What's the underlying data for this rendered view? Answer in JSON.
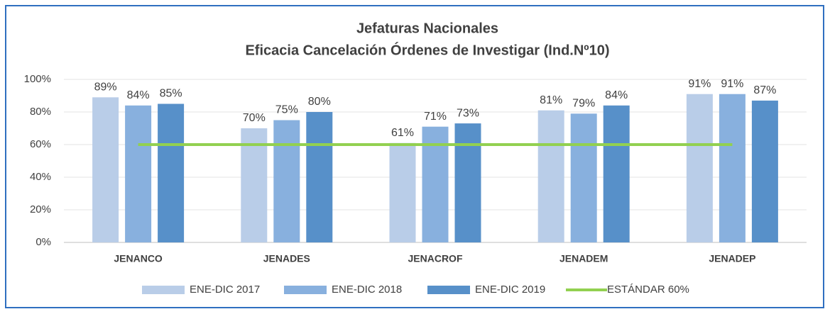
{
  "chart_data": {
    "type": "bar",
    "title": "Jefaturas Nacionales",
    "subtitle": "Eficacia Cancelación Órdenes de Investigar (Ind.Nº10)",
    "categories": [
      "JENANCO",
      "JENADES",
      "JENACROF",
      "JENADEM",
      "JENADEP"
    ],
    "series": [
      {
        "name": "ENE-DIC 2017",
        "color": "#b9cde8",
        "values": [
          89,
          70,
          61,
          81,
          91
        ],
        "value_labels": [
          "89%",
          "70%",
          "61%",
          "81%",
          "91%"
        ]
      },
      {
        "name": "ENE-DIC 2018",
        "color": "#88b0de",
        "values": [
          84,
          75,
          71,
          79,
          91
        ],
        "value_labels": [
          "84%",
          "75%",
          "71%",
          "79%",
          "91%"
        ]
      },
      {
        "name": "ENE-DIC 2019",
        "color": "#5790c9",
        "values": [
          85,
          80,
          73,
          84,
          87
        ],
        "value_labels": [
          "85%",
          "80%",
          "73%",
          "84%",
          "87%"
        ]
      },
      {
        "name": "ESTÁNDAR 60%",
        "color": "#92d050",
        "type": "line",
        "values": [
          60,
          60,
          60,
          60,
          60
        ]
      }
    ],
    "ylim": [
      0,
      100
    ],
    "yticks": [
      {
        "value": 0,
        "label": "0%"
      },
      {
        "value": 20,
        "label": "20%"
      },
      {
        "value": 40,
        "label": "40%"
      },
      {
        "value": 60,
        "label": "60%"
      },
      {
        "value": 80,
        "label": "80%"
      },
      {
        "value": 100,
        "label": "100%"
      }
    ],
    "grid": true,
    "legend": "bottom"
  }
}
